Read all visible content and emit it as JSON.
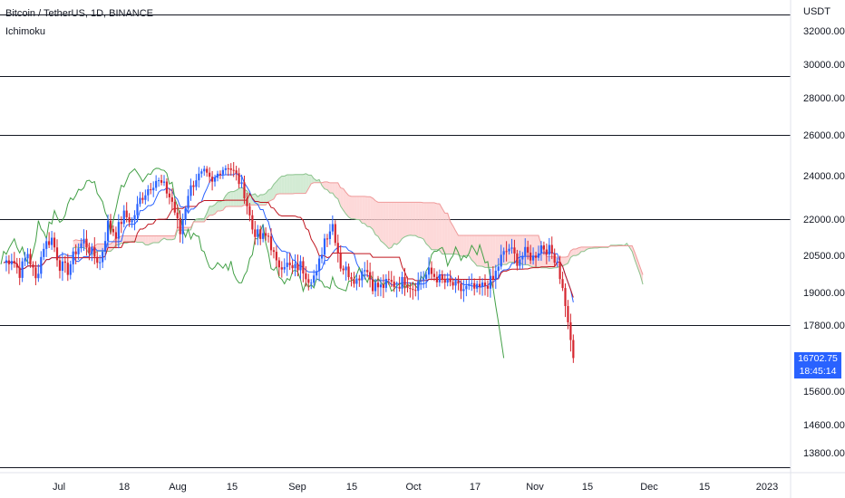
{
  "header": {
    "symbol_line": "Bitcoin / TetherUS, 1D, BINANCE",
    "indicator": "Ichimoku"
  },
  "price_tag": {
    "price": "16702.75",
    "countdown": "18:45:14"
  },
  "colors": {
    "up": "#2962ff",
    "down": "#d6262f",
    "tenkan": "#2962ff",
    "kijun": "#c0161f",
    "chikou": "#43a047",
    "cloud_bull": "#c8e6c9",
    "cloud_bear": "#fccfd0",
    "spanA": "#8bc38d",
    "spanB": "#ef9a9a"
  },
  "chart_data": {
    "type": "candlestick",
    "title": "Bitcoin / TetherUS, 1D, BINANCE",
    "y_unit": "USDT",
    "yticks": [
      "32000.00",
      "30000.00",
      "28000.00",
      "26000.00",
      "24000.00",
      "22000.00",
      "20500.00",
      "19000.00",
      "17800.00",
      "15600.00",
      "14600.00",
      "13800.00"
    ],
    "xticks": [
      "Jul",
      "18",
      "Aug",
      "15",
      "Sep",
      "15",
      "Oct",
      "17",
      "Nov",
      "15",
      "Dec",
      "15",
      "2023"
    ],
    "horizontal_levels": [
      33000,
      29300,
      26000,
      22000,
      17800,
      13400
    ],
    "last_price": 16702.75,
    "ohlc_path": [
      [
        0,
        20200
      ],
      [
        3,
        20400
      ],
      [
        6,
        19800
      ],
      [
        9,
        20600
      ],
      [
        12,
        19500
      ],
      [
        15,
        20900
      ],
      [
        18,
        21200
      ],
      [
        21,
        20100
      ],
      [
        24,
        19900
      ],
      [
        27,
        20700
      ],
      [
        30,
        21100
      ],
      [
        33,
        20600
      ],
      [
        36,
        20200
      ],
      [
        39,
        21800
      ],
      [
        42,
        21400
      ],
      [
        45,
        22200
      ],
      [
        48,
        21900
      ],
      [
        51,
        22900
      ],
      [
        54,
        23400
      ],
      [
        57,
        23800
      ],
      [
        60,
        23500
      ],
      [
        63,
        22800
      ],
      [
        66,
        21400
      ],
      [
        69,
        23200
      ],
      [
        72,
        23900
      ],
      [
        75,
        24100
      ],
      [
        78,
        23600
      ],
      [
        81,
        24300
      ],
      [
        84,
        24500
      ],
      [
        87,
        24000
      ],
      [
        90,
        23200
      ],
      [
        93,
        21600
      ],
      [
        96,
        21200
      ],
      [
        99,
        21300
      ],
      [
        102,
        20100
      ],
      [
        105,
        20200
      ],
      [
        108,
        19900
      ],
      [
        111,
        20100
      ],
      [
        114,
        19600
      ],
      [
        117,
        19700
      ],
      [
        120,
        21200
      ],
      [
        123,
        21800
      ],
      [
        126,
        20100
      ],
      [
        129,
        19800
      ],
      [
        132,
        19500
      ],
      [
        135,
        20100
      ],
      [
        138,
        19300
      ],
      [
        141,
        19200
      ],
      [
        144,
        19400
      ],
      [
        147,
        19300
      ],
      [
        150,
        19500
      ],
      [
        153,
        19200
      ],
      [
        156,
        19500
      ],
      [
        159,
        19800
      ],
      [
        162,
        19600
      ],
      [
        165,
        19400
      ],
      [
        168,
        19300
      ],
      [
        171,
        19100
      ],
      [
        174,
        19200
      ],
      [
        177,
        19100
      ],
      [
        180,
        19300
      ],
      [
        183,
        19500
      ],
      [
        186,
        20400
      ],
      [
        189,
        20800
      ],
      [
        192,
        20300
      ],
      [
        195,
        20600
      ],
      [
        198,
        20400
      ],
      [
        201,
        20900
      ],
      [
        204,
        20700
      ],
      [
        207,
        20300
      ],
      [
        210,
        18500
      ],
      [
        213,
        16702.75
      ]
    ]
  }
}
